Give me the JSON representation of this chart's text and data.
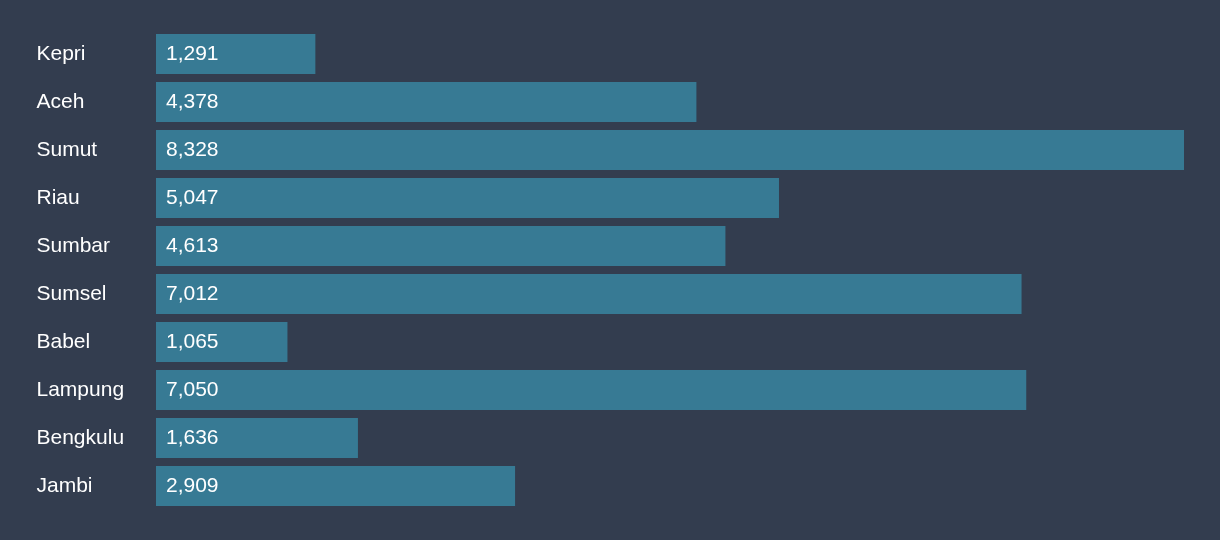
{
  "chart_data": {
    "type": "bar",
    "orientation": "horizontal",
    "categories": [
      "Kepri",
      "Aceh",
      "Sumut",
      "Riau",
      "Sumbar",
      "Sumsel",
      "Babel",
      "Lampung",
      "Bengkulu",
      "Jambi"
    ],
    "values": [
      1291,
      4378,
      8328,
      5047,
      4613,
      7012,
      1065,
      7050,
      1636,
      2909
    ],
    "value_labels": [
      "1,291",
      "4,378",
      "8,328",
      "5,047",
      "4,613",
      "7,012",
      "1,065",
      "7,050",
      "1,636",
      "2,909"
    ],
    "color": "#377a94",
    "grid": false,
    "tick_labels": "y"
  }
}
